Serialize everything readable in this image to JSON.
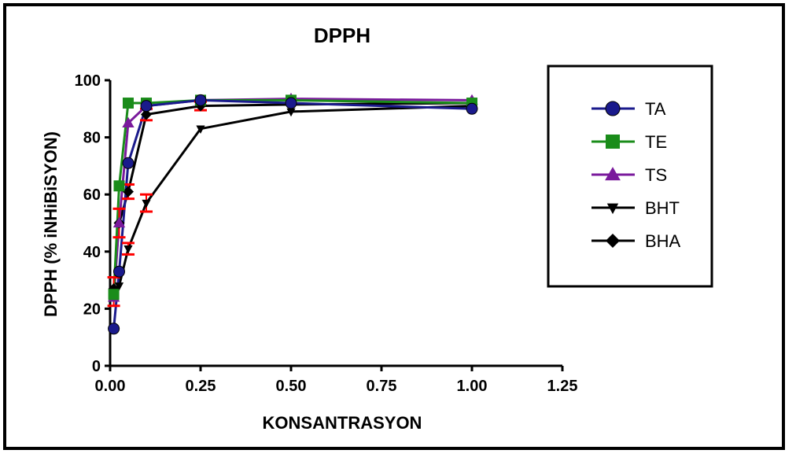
{
  "chart_data": {
    "type": "line",
    "title": "DPPH",
    "xlabel": "KONSANTRASYON",
    "ylabel": "DPPH (% iNHiBiSYON)",
    "xlim": [
      0,
      1.25
    ],
    "ylim": [
      0,
      100
    ],
    "xticks": [
      "0.00",
      "0.25",
      "0.50",
      "0.75",
      "1.00",
      "1.25"
    ],
    "yticks": [
      "0",
      "20",
      "40",
      "60",
      "80",
      "100"
    ],
    "xtick_values": [
      0,
      0.25,
      0.5,
      0.75,
      1.0,
      1.25
    ],
    "ytick_values": [
      0,
      20,
      40,
      60,
      80,
      100
    ],
    "grid": false,
    "legend_position": "right",
    "error_bar_color": "#ff0000",
    "series": [
      {
        "name": "TA",
        "color": "#1a1a8c",
        "marker": "circle",
        "x": [
          0.01,
          0.025,
          0.05,
          0.1,
          0.25,
          0.5,
          1.0
        ],
        "y": [
          13,
          33,
          71,
          91,
          93,
          92,
          90
        ]
      },
      {
        "name": "TE",
        "color": "#1a8c1a",
        "marker": "square",
        "x": [
          0.01,
          0.025,
          0.05,
          0.1,
          0.25,
          0.5,
          1.0
        ],
        "y": [
          25,
          63,
          92,
          92,
          93,
          93,
          92
        ]
      },
      {
        "name": "TS",
        "color": "#7a1a9c",
        "marker": "triangle-up",
        "x": [
          0.01,
          0.025,
          0.05,
          0.1,
          0.25,
          0.5,
          1.0
        ],
        "y": [
          24,
          50,
          85,
          91,
          93,
          93.5,
          93
        ]
      },
      {
        "name": "BHT",
        "color": "#000000",
        "marker": "triangle-down",
        "x": [
          0.01,
          0.025,
          0.05,
          0.1,
          0.25,
          0.5,
          1.0
        ],
        "y": [
          26,
          28,
          41,
          57,
          83,
          89,
          91
        ]
      },
      {
        "name": "BHA",
        "color": "#000000",
        "marker": "diamond",
        "x": [
          0.01,
          0.025,
          0.05,
          0.1,
          0.25,
          0.5,
          1.0
        ],
        "y": [
          27,
          50,
          61,
          88,
          91,
          91.5,
          92
        ]
      }
    ],
    "error_bars": [
      {
        "x": 0.01,
        "y": 26,
        "err": 5
      },
      {
        "x": 0.025,
        "y": 50,
        "err": 5
      },
      {
        "x": 0.05,
        "y": 61,
        "err": 2.5
      },
      {
        "x": 0.05,
        "y": 41,
        "err": 2
      },
      {
        "x": 0.1,
        "y": 57,
        "err": 3
      },
      {
        "x": 0.1,
        "y": 88,
        "err": 2
      },
      {
        "x": 0.25,
        "y": 91,
        "err": 1.5
      }
    ]
  }
}
